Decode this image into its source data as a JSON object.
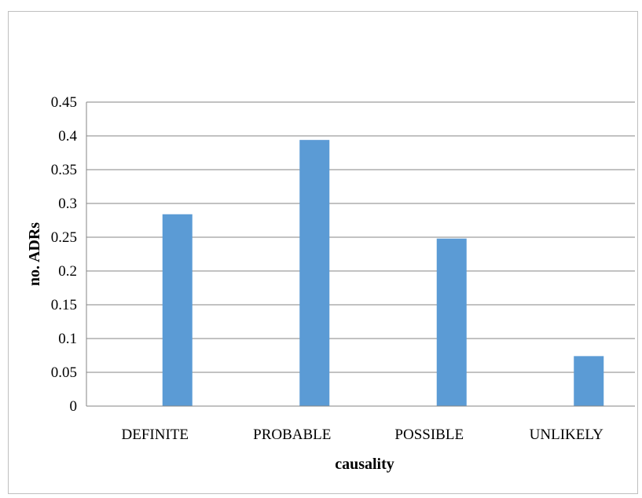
{
  "chart_data": {
    "type": "bar",
    "title": "",
    "xlabel": "causality",
    "ylabel": "no. ADRs",
    "categories": [
      "DEFINITE",
      "PROBABLE",
      "POSSIBLE",
      "UNLIKELY"
    ],
    "series": [
      {
        "values": [
          0,
          0,
          0,
          0
        ],
        "color": "#5b9bd5"
      },
      {
        "values": [
          0.284,
          0.394,
          0.248,
          0.074
        ],
        "color": "#5b9bd5"
      }
    ],
    "ylim": [
      0,
      0.45
    ],
    "yticks": [
      0,
      0.05,
      0.1,
      0.15,
      0.2,
      0.25,
      0.3,
      0.35,
      0.4,
      0.45
    ],
    "ytick_labels": [
      "0",
      "0.05",
      "0.1",
      "0.15",
      "0.2",
      "0.25",
      "0.3",
      "0.35",
      "0.4",
      "0.45"
    ],
    "grid": true,
    "legend": "none",
    "colors": {
      "bar": "#5b9bd5",
      "grid": "#868686",
      "axis": "#868686",
      "border": "#bfbfbf"
    }
  }
}
